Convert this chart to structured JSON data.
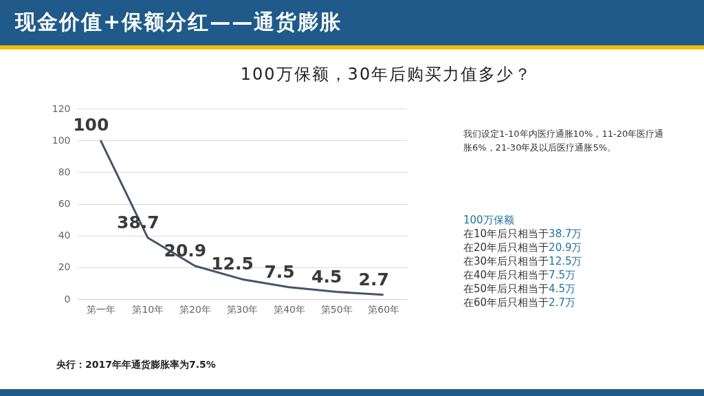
{
  "chart_data": {
    "type": "line",
    "title": "现金价值+保额分红——通货膨胀",
    "subtitle": "100万保额，30年后购买力值多少？",
    "categories": [
      "第一年",
      "第10年",
      "第20年",
      "第30年",
      "第40年",
      "第50年",
      "第60年"
    ],
    "series": [
      {
        "color": "#44546a",
        "values": [
          100,
          38.7,
          20.9,
          12.5,
          7.5,
          4.5,
          2.7
        ]
      }
    ],
    "ylim": [
      0,
      120
    ],
    "yticks": [
      0,
      20,
      40,
      60,
      80,
      100,
      120
    ],
    "grid": "y",
    "data_labels": true,
    "marker": "none",
    "line_style": "solid",
    "annotations": [
      "我们设定1-10年内医疗通胀10%，11-20年医疗通胀6%，21-30年及以后医疗通胀5%。",
      "100万保额",
      "在10年后只相当于38.7万",
      "在20年后只相当于20.9万",
      "在30年后只相当于12.5万",
      "在40年后只相当于7.5万",
      "在50年后只相当于4.5万",
      "在60年后只相当于2.7万",
      "央行：2017年年通货膨胀率为7.5%"
    ]
  }
}
